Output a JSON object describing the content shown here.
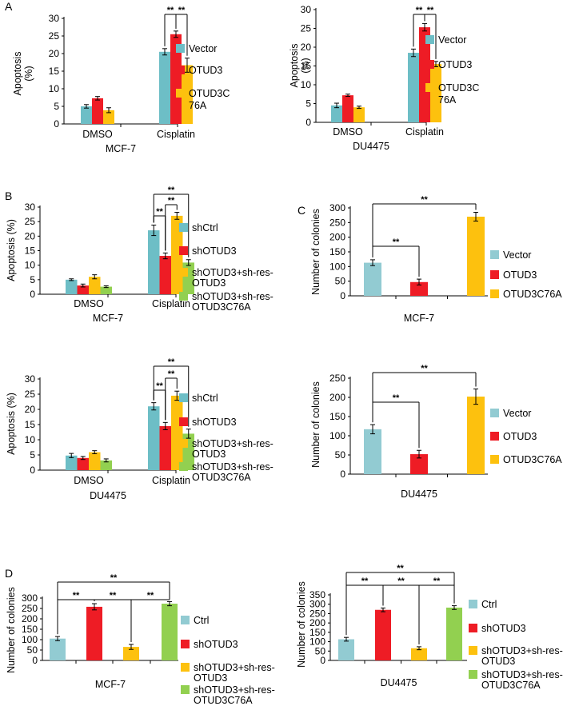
{
  "panel_labels": [
    "A",
    "B",
    "C",
    "D"
  ],
  "chart_data": [
    {
      "id": "A1",
      "panel": "A",
      "type": "bar",
      "categories": [
        "DMSO",
        "Cisplatin"
      ],
      "series": [
        {
          "name": "Vector",
          "color": "#6dbec6",
          "values": [
            5,
            20.5
          ],
          "errors": [
            0.5,
            0.9
          ]
        },
        {
          "name": "OTUD3",
          "color": "#ee1c25",
          "values": [
            7.3,
            25.5
          ],
          "errors": [
            0.5,
            0.9
          ]
        },
        {
          "name": "OTUD3C76A",
          "color": "#fdc10e",
          "values": [
            3.9,
            16.7
          ],
          "errors": [
            0.7,
            2
          ]
        }
      ],
      "legend_lines": [
        [
          "Vector"
        ],
        [
          "OTUD3"
        ],
        [
          "OTUD3C",
          "76A"
        ]
      ],
      "ylabel_lines": [
        "Apoptosis",
        "(%)"
      ],
      "xlabel": "MCF-7",
      "ylim": [
        0,
        30
      ],
      "yticks": [
        0,
        5,
        10,
        15,
        20,
        25,
        30
      ],
      "significance": [
        {
          "group": 1,
          "from": 0,
          "to": 1,
          "label": "**"
        },
        {
          "group": 1,
          "from": 1,
          "to": 2,
          "label": "**"
        }
      ]
    },
    {
      "id": "A2",
      "panel": "A",
      "type": "bar",
      "categories": [
        "DMSO",
        "Cisplatin"
      ],
      "series": [
        {
          "name": "Vector",
          "color": "#6dbec6",
          "values": [
            4.5,
            18.5
          ],
          "errors": [
            0.6,
            1
          ]
        },
        {
          "name": "OTUD3",
          "color": "#ee1c25",
          "values": [
            7.2,
            25.3
          ],
          "errors": [
            0.3,
            1
          ]
        },
        {
          "name": "OTUD3C76A",
          "color": "#fdc10e",
          "values": [
            4,
            15.5
          ],
          "errors": [
            0.3,
            0.7
          ]
        }
      ],
      "legend_lines": [
        [
          "Vector"
        ],
        [
          "OTUD3"
        ],
        [
          "OTUD3C",
          "76A"
        ]
      ],
      "ylabel_lines": [
        "Apoptosis",
        "(%)"
      ],
      "xlabel": "DU4475",
      "ylim": [
        0,
        30
      ],
      "yticks": [
        0,
        5,
        10,
        15,
        20,
        25,
        30
      ],
      "significance": [
        {
          "group": 1,
          "from": 0,
          "to": 1,
          "label": "**"
        },
        {
          "group": 1,
          "from": 1,
          "to": 2,
          "label": "**"
        }
      ]
    },
    {
      "id": "B1",
      "panel": "B",
      "type": "bar",
      "categories": [
        "DMSO",
        "Cisplatin"
      ],
      "series": [
        {
          "name": "shCtrl",
          "color": "#6dbec6",
          "values": [
            5,
            22
          ],
          "errors": [
            0.3,
            1.8
          ]
        },
        {
          "name": "shOTUD3",
          "color": "#ee1c25",
          "values": [
            3,
            13.2
          ],
          "errors": [
            0.5,
            1
          ]
        },
        {
          "name": "shOTUD3+sh-res-OTUD3",
          "color": "#fdc10e",
          "values": [
            6,
            27
          ],
          "errors": [
            0.7,
            1.2
          ]
        },
        {
          "name": "shOTUD3+sh-res-OTUD3C76A",
          "color": "#92d050",
          "values": [
            2.6,
            10.9
          ],
          "errors": [
            0.3,
            1
          ]
        }
      ],
      "legend_lines": [
        [
          "shCtrl"
        ],
        [
          "shOTUD3"
        ],
        [
          "shOTUD3+sh-res-",
          "OTUD3"
        ],
        [
          "shOTUD3+sh-res-",
          "OTUD3C76A"
        ]
      ],
      "ylabel_lines": [
        "Apoptosis (%)"
      ],
      "xlabel": "MCF-7",
      "ylim": [
        0,
        30
      ],
      "yticks": [
        0,
        5,
        10,
        15,
        20,
        25,
        30
      ],
      "significance": [
        {
          "group": 1,
          "from": 0,
          "to": 1,
          "label": "**"
        },
        {
          "group": 1,
          "from": 1,
          "to": 2,
          "label": "**"
        },
        {
          "group": 1,
          "from": 0,
          "to": 3,
          "label": "**"
        }
      ]
    },
    {
      "id": "B2",
      "panel": "B",
      "type": "bar",
      "categories": [
        "DMSO",
        "Cisplatin"
      ],
      "series": [
        {
          "name": "shCtrl",
          "color": "#6dbec6",
          "values": [
            4.8,
            21
          ],
          "errors": [
            0.7,
            1.2
          ]
        },
        {
          "name": "shOTUD3",
          "color": "#ee1c25",
          "values": [
            4,
            14.5
          ],
          "errors": [
            0.5,
            1.2
          ]
        },
        {
          "name": "shOTUD3+sh-res-OTUD3",
          "color": "#fdc10e",
          "values": [
            5.9,
            24.5
          ],
          "errors": [
            0.5,
            1.5
          ]
        },
        {
          "name": "shOTUD3+sh-res-OTUD3C76A",
          "color": "#92d050",
          "values": [
            3.2,
            12
          ],
          "errors": [
            0.5,
            1.5
          ]
        }
      ],
      "legend_lines": [
        [
          "shCtrl"
        ],
        [
          "shOTUD3"
        ],
        [
          "shOTUD3+sh-res-",
          "OTUD3"
        ],
        [
          "shOTUD3+sh-res-",
          "OTUD3C76A"
        ]
      ],
      "ylabel_lines": [
        "Apoptosis (%)"
      ],
      "xlabel": "DU4475",
      "ylim": [
        0,
        30
      ],
      "yticks": [
        0,
        5,
        10,
        15,
        20,
        25,
        30
      ],
      "significance": [
        {
          "group": 1,
          "from": 0,
          "to": 1,
          "label": "**"
        },
        {
          "group": 1,
          "from": 1,
          "to": 2,
          "label": "**"
        },
        {
          "group": 1,
          "from": 0,
          "to": 3,
          "label": "**"
        }
      ]
    },
    {
      "id": "C1",
      "panel": "C",
      "type": "bar",
      "categories": [
        "Vector",
        "OTUD3",
        "OTUD3C76A"
      ],
      "values": [
        113,
        47,
        270
      ],
      "errors": [
        10,
        10,
        15
      ],
      "colors": [
        "#92cbd2",
        "#ee1c25",
        "#fdc10e"
      ],
      "legend_lines": [
        [
          "Vector"
        ],
        [
          "OTUD3"
        ],
        [
          "OTUD3C76A"
        ]
      ],
      "ylabel_lines": [
        "Number of colonies"
      ],
      "xlabel": "MCF-7",
      "ylim": [
        0,
        300
      ],
      "yticks": [
        0,
        50,
        100,
        150,
        200,
        250,
        300
      ],
      "significance": [
        {
          "from": 0,
          "to": 1,
          "label": "**"
        },
        {
          "from": 0,
          "to": 2,
          "label": "**"
        }
      ]
    },
    {
      "id": "C2",
      "panel": "C",
      "type": "bar",
      "categories": [
        "Vector",
        "OTUD3",
        "OTUD3C76A"
      ],
      "values": [
        117,
        52,
        202
      ],
      "errors": [
        12,
        10,
        20
      ],
      "colors": [
        "#92cbd2",
        "#ee1c25",
        "#fdc10e"
      ],
      "legend_lines": [
        [
          "Vector"
        ],
        [
          "OTUD3"
        ],
        [
          "OTUD3C76A"
        ]
      ],
      "ylabel_lines": [
        "Number of colonies"
      ],
      "xlabel": "DU4475",
      "ylim": [
        0,
        250
      ],
      "yticks": [
        0,
        50,
        100,
        150,
        200,
        250
      ],
      "significance": [
        {
          "from": 0,
          "to": 1,
          "label": "**"
        },
        {
          "from": 0,
          "to": 2,
          "label": "**"
        }
      ]
    },
    {
      "id": "D1",
      "panel": "D",
      "type": "bar",
      "categories": [
        "Ctrl",
        "shOTUD3",
        "shOTUD3+sh-res-OTUD3",
        "shOTUD3+sh-res-OTUD3C76A"
      ],
      "values": [
        105,
        258,
        65,
        273
      ],
      "errors": [
        10,
        15,
        12,
        10
      ],
      "colors": [
        "#92cbd2",
        "#ee1c25",
        "#fdc10e",
        "#92d050"
      ],
      "legend_lines": [
        [
          "Ctrl"
        ],
        [
          "shOTUD3"
        ],
        [
          "shOTUD3+sh-res-",
          "OTUD3"
        ],
        [
          "shOTUD3+sh-res-",
          "OTUD3C76A"
        ]
      ],
      "ylabel_lines": [
        "Number of colonies"
      ],
      "xlabel": "MCF-7",
      "ylim": [
        0,
        300
      ],
      "yticks": [
        0,
        50,
        100,
        150,
        200,
        250,
        300
      ],
      "significance": [
        {
          "from": 0,
          "to": 1,
          "label": "**"
        },
        {
          "from": 1,
          "to": 2,
          "label": "**"
        },
        {
          "from": 2,
          "to": 3,
          "label": "**"
        },
        {
          "from": 0,
          "to": 3,
          "label": "**"
        }
      ]
    },
    {
      "id": "D2",
      "panel": "D",
      "type": "bar",
      "categories": [
        "Ctrl",
        "shOTUD3",
        "shOTUD3+sh-res-OTUD3",
        "shOTUD3+sh-res-OTUD3C76A"
      ],
      "values": [
        113,
        270,
        65,
        282
      ],
      "errors": [
        10,
        10,
        8,
        10
      ],
      "colors": [
        "#92cbd2",
        "#ee1c25",
        "#fdc10e",
        "#92d050"
      ],
      "legend_lines": [
        [
          "Ctrl"
        ],
        [
          "shOTUD3"
        ],
        [
          "shOTUD3+sh-res-",
          "OTUD3"
        ],
        [
          "shOTUD3+sh-res-",
          "OTUD3C76A"
        ]
      ],
      "ylabel_lines": [
        "Number of colonies"
      ],
      "xlabel": "DU4475",
      "ylim": [
        0,
        350
      ],
      "yticks": [
        0,
        50,
        100,
        150,
        200,
        250,
        300,
        350
      ],
      "significance": [
        {
          "from": 0,
          "to": 1,
          "label": "**"
        },
        {
          "from": 1,
          "to": 2,
          "label": "**"
        },
        {
          "from": 2,
          "to": 3,
          "label": "**"
        },
        {
          "from": 0,
          "to": 3,
          "label": "**"
        }
      ]
    }
  ]
}
